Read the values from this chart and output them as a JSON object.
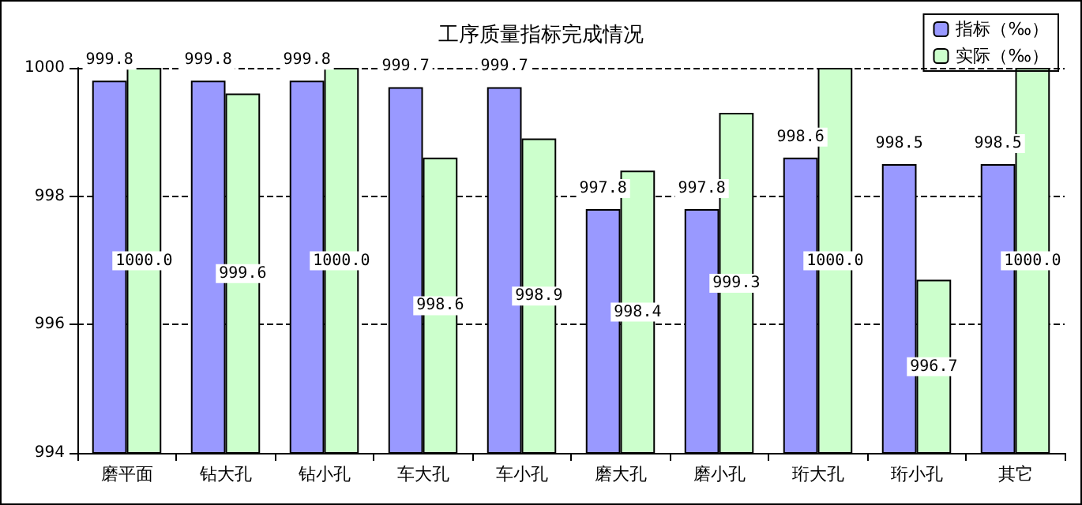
{
  "chart_data": {
    "type": "bar",
    "title": "工序质量指标完成情况",
    "categories": [
      "磨平面",
      "钻大孔",
      "钻小孔",
      "车大孔",
      "车小孔",
      "磨大孔",
      "磨小孔",
      "珩大孔",
      "珩小孔",
      "其它"
    ],
    "series": [
      {
        "name": "指标（‰）",
        "color": "#9999ff",
        "values": [
          999.8,
          999.8,
          999.8,
          999.7,
          999.7,
          997.8,
          997.8,
          998.6,
          998.5,
          998.5
        ],
        "value_labels": [
          "999.8",
          "999.8",
          "999.8",
          "999.7",
          "999.7",
          "997.8",
          "997.8",
          "998.6",
          "998.5",
          "998.5"
        ]
      },
      {
        "name": "实际（‰）",
        "color": "#ccffcc",
        "values": [
          1000.0,
          999.6,
          1000.0,
          998.6,
          998.9,
          998.4,
          999.3,
          1000.0,
          996.7,
          1000.0
        ],
        "value_labels": [
          "1000.0",
          "999.6",
          "1000.0",
          "998.6",
          "998.9",
          "998.4",
          "999.3",
          "1000.0",
          "996.7",
          "1000.0"
        ]
      }
    ],
    "ylim": [
      994,
      1000
    ],
    "yticks": [
      994,
      996,
      998,
      1000
    ],
    "grid": "y",
    "line_style": "dashed",
    "legend": "top right"
  }
}
